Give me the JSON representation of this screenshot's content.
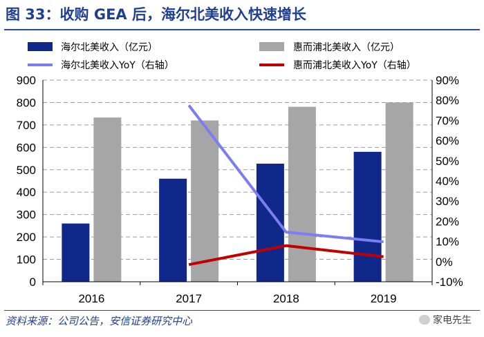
{
  "figure": {
    "title": "图 33：收购 GEA 后，海尔北美收入快速增长",
    "source": "资料来源：公司公告，安信证券研究中心",
    "watermark": "家电先生"
  },
  "chart_data": {
    "type": "bar",
    "categories": [
      "2016",
      "2017",
      "2018",
      "2019"
    ],
    "series": [
      {
        "name": "海尔北美收入（亿元）",
        "kind": "bar",
        "axis": "left",
        "color": "#0f2889",
        "values": [
          260,
          460,
          527,
          580
        ]
      },
      {
        "name": "惠而浦北美收入（亿元）",
        "kind": "bar",
        "axis": "left",
        "color": "#a6a6a6",
        "values": [
          733,
          720,
          781,
          800
        ]
      },
      {
        "name": "海尔北美收入YoY（右轴）",
        "kind": "line",
        "axis": "right",
        "color": "#7b7ef0",
        "values": [
          null,
          77.5,
          14.6,
          9.8
        ]
      },
      {
        "name": "惠而浦北美收入YoY（右轴）",
        "kind": "line",
        "axis": "right",
        "color": "#c00000",
        "values": [
          null,
          -1.5,
          7.9,
          2.4
        ]
      }
    ],
    "y_left": {
      "min": 0,
      "max": 900,
      "step": 100,
      "ticks": [
        "0",
        "100",
        "200",
        "300",
        "400",
        "500",
        "600",
        "700",
        "800",
        "900"
      ]
    },
    "y_right": {
      "min": -10,
      "max": 90,
      "step": 10,
      "ticks": [
        "-10%",
        "0%",
        "10%",
        "20%",
        "30%",
        "40%",
        "50%",
        "60%",
        "70%",
        "80%",
        "90%"
      ]
    },
    "grid": true,
    "legend_position": "top"
  }
}
